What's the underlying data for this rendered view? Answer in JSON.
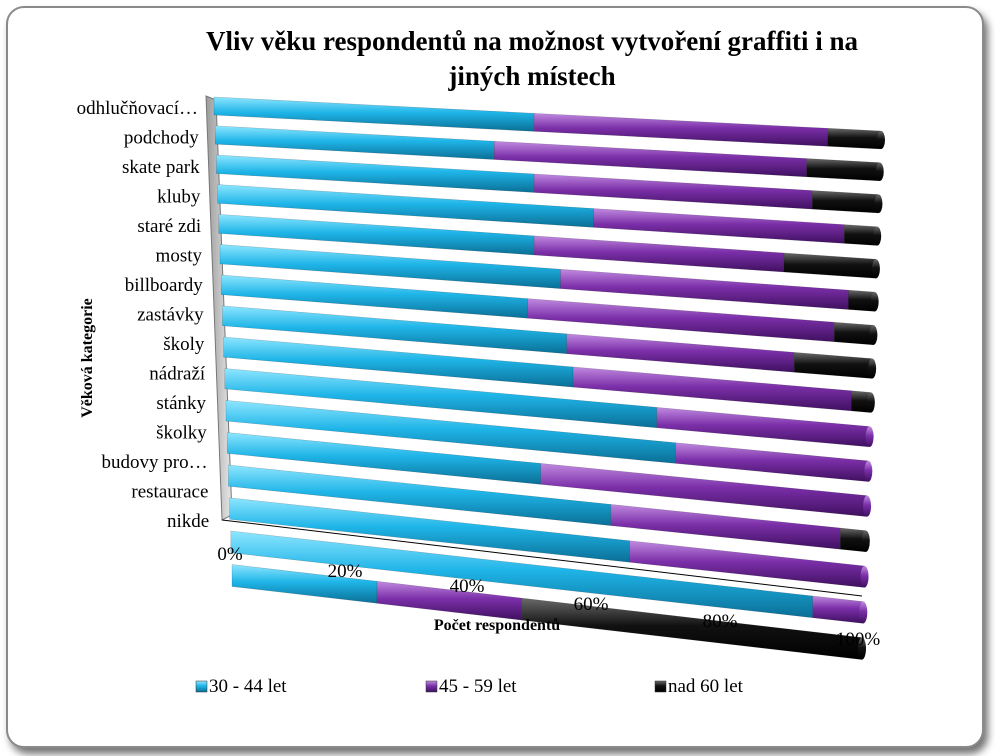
{
  "chart_data": {
    "type": "bar",
    "orientation": "horizontal",
    "stacked": "percent",
    "title": "Vliv věku respondentů na možnost vytvoření graffiti i na jiných místech",
    "title_lines": [
      "Vliv věku respondentů na možnost vytvoření graffiti i na",
      "jiných místech"
    ],
    "ylabel": "Věková kategorie",
    "xlabel": "Počet respondentů",
    "x_ticks": [
      "0%",
      "20%",
      "40%",
      "60%",
      "80%",
      "100%"
    ],
    "xlim": [
      0,
      100
    ],
    "categories": [
      "odhlučňovací…",
      "podchody",
      "skate park",
      "kluby",
      "staré zdi",
      "mosty",
      "billboardy",
      "zastávky",
      "školy",
      "nádraží",
      "stánky",
      "školky",
      "budovy pro…",
      "restaurace",
      "nikde"
    ],
    "series": [
      {
        "name": "30 - 44 let",
        "color": "#1fb5e8",
        "values": [
          48,
          42,
          48,
          57,
          48,
          52,
          47,
          53,
          54,
          67,
          70,
          49,
          60,
          63,
          92
        ]
      },
      {
        "name": "45 - 59 let",
        "color": "#7b2fa8",
        "values": [
          44,
          47,
          42,
          38,
          38,
          44,
          47,
          35,
          43,
          33,
          30,
          51,
          36,
          37,
          8
        ]
      },
      {
        "name": "nad 60 let",
        "color": "#0d0d0d",
        "values": [
          8,
          11,
          10,
          5,
          14,
          4,
          6,
          12,
          3,
          0,
          0,
          0,
          4,
          0,
          0
        ]
      }
    ],
    "extra_bar": {
      "category": "",
      "values": [
        23,
        23,
        54
      ]
    },
    "legend": "bottom",
    "grid": false,
    "style": "3d-perspective"
  }
}
